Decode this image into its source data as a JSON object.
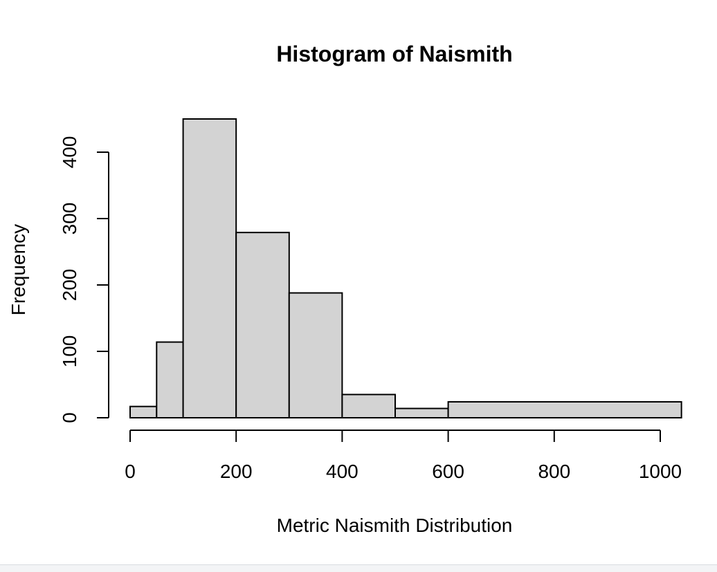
{
  "chart_data": {
    "type": "bar",
    "title": "Histogram of Naismith",
    "xlabel": "Metric Naismith Distribution",
    "ylabel": "Frequency",
    "bins": [
      {
        "start": 0,
        "end": 50,
        "count": 17
      },
      {
        "start": 50,
        "end": 100,
        "count": 114
      },
      {
        "start": 100,
        "end": 200,
        "count": 450
      },
      {
        "start": 200,
        "end": 300,
        "count": 279
      },
      {
        "start": 300,
        "end": 400,
        "count": 188
      },
      {
        "start": 400,
        "end": 500,
        "count": 35
      },
      {
        "start": 500,
        "end": 600,
        "count": 14
      },
      {
        "start": 600,
        "end": 1040,
        "count": 24
      }
    ],
    "xlim": [
      0,
      1040
    ],
    "ylim": [
      0,
      450
    ],
    "x_ticks": [
      0,
      200,
      400,
      600,
      800,
      1000
    ],
    "y_ticks": [
      0,
      100,
      200,
      300,
      400
    ],
    "bar_color": "#d3d3d3",
    "grid": false
  }
}
